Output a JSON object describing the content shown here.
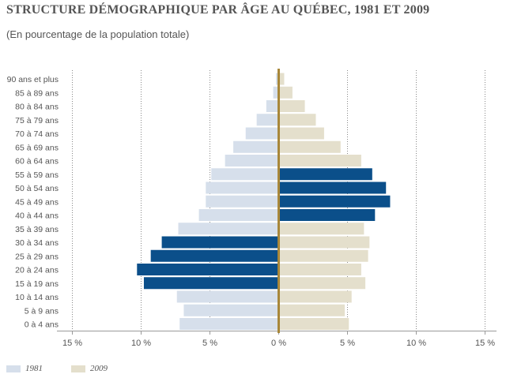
{
  "title": "STRUCTURE DÉMOGRAPHIQUE PAR ÂGE AU QUÉBEC, 1981 ET 2009",
  "subtitle": "(En pourcentage de la population totale)",
  "colors": {
    "c1981": "#d6dfeb",
    "c2009": "#e4dfcc",
    "highlight": "#0b4f8a",
    "axis": "#a8873a",
    "grid": "#888888"
  },
  "chart_data": {
    "type": "bar",
    "orientation": "horizontal-pyramid",
    "categories": [
      "90 ans et plus",
      "85 à 89 ans",
      "80 à 84 ans",
      "75 à 79 ans",
      "70 à 74 ans",
      "65 à 69 ans",
      "60 à 64 ans",
      "55 à 59 ans",
      "50 à 54 ans",
      "45 à 49 ans",
      "40 à 44 ans",
      "35 à 39 ans",
      "30 à 34 ans",
      "25 à 29 ans",
      "20 à 24 ans",
      "15 à 19 ans",
      "10 à 14 ans",
      "5 à 9 ans",
      "0 à 4 ans"
    ],
    "series": [
      {
        "name": "1981",
        "side": "left",
        "values": [
          0.2,
          0.4,
          0.9,
          1.6,
          2.4,
          3.3,
          3.9,
          4.9,
          5.3,
          5.3,
          5.8,
          7.3,
          8.5,
          9.3,
          10.3,
          9.8,
          7.4,
          6.9,
          7.2
        ],
        "highlight": [
          false,
          false,
          false,
          false,
          false,
          false,
          false,
          false,
          false,
          false,
          false,
          false,
          true,
          true,
          true,
          true,
          false,
          false,
          false
        ]
      },
      {
        "name": "2009",
        "side": "right",
        "values": [
          0.4,
          1.0,
          1.9,
          2.7,
          3.3,
          4.5,
          6.0,
          6.8,
          7.8,
          8.1,
          7.0,
          6.2,
          6.6,
          6.5,
          6.0,
          6.3,
          5.3,
          4.8,
          5.1
        ],
        "highlight": [
          false,
          false,
          false,
          false,
          false,
          false,
          false,
          true,
          true,
          true,
          true,
          false,
          false,
          false,
          false,
          false,
          false,
          false,
          false
        ]
      }
    ],
    "xlim": [
      -15,
      15
    ],
    "xticks": [
      {
        "value": -15,
        "label": "15 %"
      },
      {
        "value": -10,
        "label": "10 %"
      },
      {
        "value": -5,
        "label": "5 %"
      },
      {
        "value": 0,
        "label": "0 %"
      },
      {
        "value": 5,
        "label": "5 %"
      },
      {
        "value": 10,
        "label": "10 %"
      },
      {
        "value": 15,
        "label": "15 %"
      }
    ],
    "grid": true,
    "legend": "bottom-left"
  }
}
